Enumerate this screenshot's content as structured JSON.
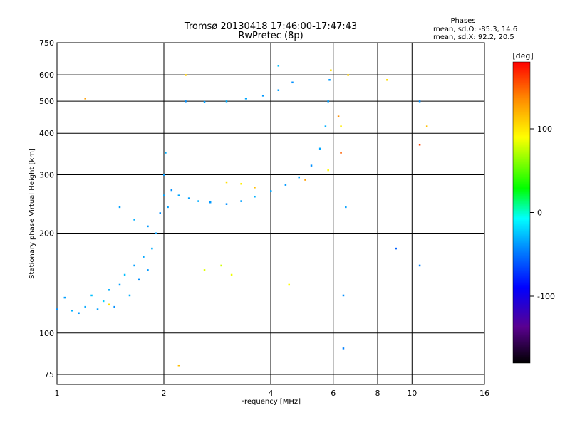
{
  "chart_data": {
    "type": "scatter",
    "title": "Tromsø 20130418 17:46:00-17:47:43",
    "subtitle": "RwPretec (8p)",
    "xlabel": "Frequency [MHz]",
    "ylabel": "Stationary phase Virtual Height [km]",
    "x_scale": "log",
    "y_scale": "log",
    "xlim": [
      1,
      16
    ],
    "ylim": [
      70,
      750
    ],
    "x_ticks": [
      1,
      2,
      4,
      6,
      8,
      10,
      16
    ],
    "x_tick_labels": [
      "1",
      "2",
      "4",
      "6",
      "8",
      "10",
      "16"
    ],
    "y_ticks": [
      75,
      100,
      200,
      300,
      400,
      500,
      600,
      750
    ],
    "y_tick_labels": [
      "75",
      "100",
      "200",
      "300",
      "400",
      "500",
      "600",
      "750"
    ],
    "grid": true,
    "stats": {
      "heading": "Phases",
      "o_line": "mean, sd,O: -85.3, 14.6",
      "x_line": "mean, sd,X:  92.2, 20.5"
    },
    "colorbar": {
      "label": "[deg]",
      "range": [
        -180,
        180
      ],
      "ticks": [
        100,
        0,
        -100
      ],
      "tick_labels": [
        "100",
        "0",
        "-100"
      ]
    },
    "series": [
      {
        "points": [
          {
            "x": 1.0,
            "y": 118,
            "p": -95
          },
          {
            "x": 1.05,
            "y": 128,
            "p": -90
          },
          {
            "x": 1.1,
            "y": 117,
            "p": -85
          },
          {
            "x": 1.15,
            "y": 115,
            "p": -92
          },
          {
            "x": 1.2,
            "y": 120,
            "p": -88
          },
          {
            "x": 1.25,
            "y": 130,
            "p": -80
          },
          {
            "x": 1.3,
            "y": 118,
            "p": -90
          },
          {
            "x": 1.35,
            "y": 125,
            "p": -75
          },
          {
            "x": 1.4,
            "y": 135,
            "p": -85
          },
          {
            "x": 1.45,
            "y": 120,
            "p": -95
          },
          {
            "x": 1.5,
            "y": 140,
            "p": -90
          },
          {
            "x": 1.55,
            "y": 150,
            "p": -80
          },
          {
            "x": 1.6,
            "y": 130,
            "p": -85
          },
          {
            "x": 1.65,
            "y": 160,
            "p": -90
          },
          {
            "x": 1.7,
            "y": 145,
            "p": -95
          },
          {
            "x": 1.75,
            "y": 170,
            "p": -88
          },
          {
            "x": 1.8,
            "y": 155,
            "p": -92
          },
          {
            "x": 1.85,
            "y": 180,
            "p": -85
          },
          {
            "x": 1.9,
            "y": 200,
            "p": -90
          },
          {
            "x": 1.95,
            "y": 230,
            "p": -95
          },
          {
            "x": 2.0,
            "y": 260,
            "p": -88
          },
          {
            "x": 2.0,
            "y": 300,
            "p": -92
          },
          {
            "x": 2.02,
            "y": 350,
            "p": -85
          },
          {
            "x": 2.05,
            "y": 240,
            "p": -90
          },
          {
            "x": 2.1,
            "y": 270,
            "p": -95
          },
          {
            "x": 2.2,
            "y": 260,
            "p": -88
          },
          {
            "x": 2.35,
            "y": 255,
            "p": -90
          },
          {
            "x": 2.5,
            "y": 250,
            "p": -85
          },
          {
            "x": 2.7,
            "y": 248,
            "p": -92
          },
          {
            "x": 3.0,
            "y": 245,
            "p": -95
          },
          {
            "x": 3.3,
            "y": 250,
            "p": -90
          },
          {
            "x": 3.6,
            "y": 258,
            "p": -85
          },
          {
            "x": 4.0,
            "y": 268,
            "p": -88
          },
          {
            "x": 4.4,
            "y": 280,
            "p": -92
          },
          {
            "x": 4.8,
            "y": 295,
            "p": -90
          },
          {
            "x": 5.2,
            "y": 320,
            "p": -95
          },
          {
            "x": 5.5,
            "y": 360,
            "p": -88
          },
          {
            "x": 5.7,
            "y": 420,
            "p": -85
          },
          {
            "x": 5.8,
            "y": 500,
            "p": -90
          },
          {
            "x": 5.85,
            "y": 580,
            "p": -92
          },
          {
            "x": 2.3,
            "y": 500,
            "p": -95
          },
          {
            "x": 2.6,
            "y": 498,
            "p": -90
          },
          {
            "x": 3.0,
            "y": 500,
            "p": -85
          },
          {
            "x": 3.4,
            "y": 510,
            "p": -88
          },
          {
            "x": 3.8,
            "y": 520,
            "p": -92
          },
          {
            "x": 4.2,
            "y": 540,
            "p": -90
          },
          {
            "x": 4.6,
            "y": 570,
            "p": -95
          },
          {
            "x": 1.5,
            "y": 240,
            "p": -90
          },
          {
            "x": 1.65,
            "y": 220,
            "p": -85
          },
          {
            "x": 1.8,
            "y": 210,
            "p": -92
          },
          {
            "x": 6.4,
            "y": 90,
            "p": -100
          },
          {
            "x": 6.4,
            "y": 130,
            "p": -95
          },
          {
            "x": 6.5,
            "y": 240,
            "p": -90
          },
          {
            "x": 9.0,
            "y": 180,
            "p": -110
          },
          {
            "x": 10.5,
            "y": 160,
            "p": -100
          },
          {
            "x": 10.5,
            "y": 500,
            "p": -95
          },
          {
            "x": 4.5,
            "y": 140,
            "p": 100
          },
          {
            "x": 3.0,
            "y": 285,
            "p": 110
          },
          {
            "x": 3.3,
            "y": 282,
            "p": 105
          },
          {
            "x": 3.6,
            "y": 275,
            "p": 120
          },
          {
            "x": 5.8,
            "y": 310,
            "p": 100
          },
          {
            "x": 5.9,
            "y": 620,
            "p": 110
          },
          {
            "x": 6.3,
            "y": 420,
            "p": 105
          },
          {
            "x": 6.6,
            "y": 600,
            "p": 115
          },
          {
            "x": 2.6,
            "y": 155,
            "p": 90
          },
          {
            "x": 2.9,
            "y": 160,
            "p": 85
          },
          {
            "x": 1.4,
            "y": 122,
            "p": 110
          },
          {
            "x": 2.2,
            "y": 80,
            "p": 120
          },
          {
            "x": 8.5,
            "y": 580,
            "p": 110
          },
          {
            "x": 11.0,
            "y": 420,
            "p": 120
          },
          {
            "x": 3.1,
            "y": 150,
            "p": 95
          },
          {
            "x": 6.2,
            "y": 450,
            "p": 135
          },
          {
            "x": 6.3,
            "y": 350,
            "p": 150
          },
          {
            "x": 5.0,
            "y": 290,
            "p": 130
          },
          {
            "x": 10.5,
            "y": 370,
            "p": 160
          },
          {
            "x": 4.2,
            "y": 640,
            "p": -80
          },
          {
            "x": 1.2,
            "y": 510,
            "p": 130
          },
          {
            "x": 2.3,
            "y": 600,
            "p": 115
          }
        ]
      }
    ]
  }
}
